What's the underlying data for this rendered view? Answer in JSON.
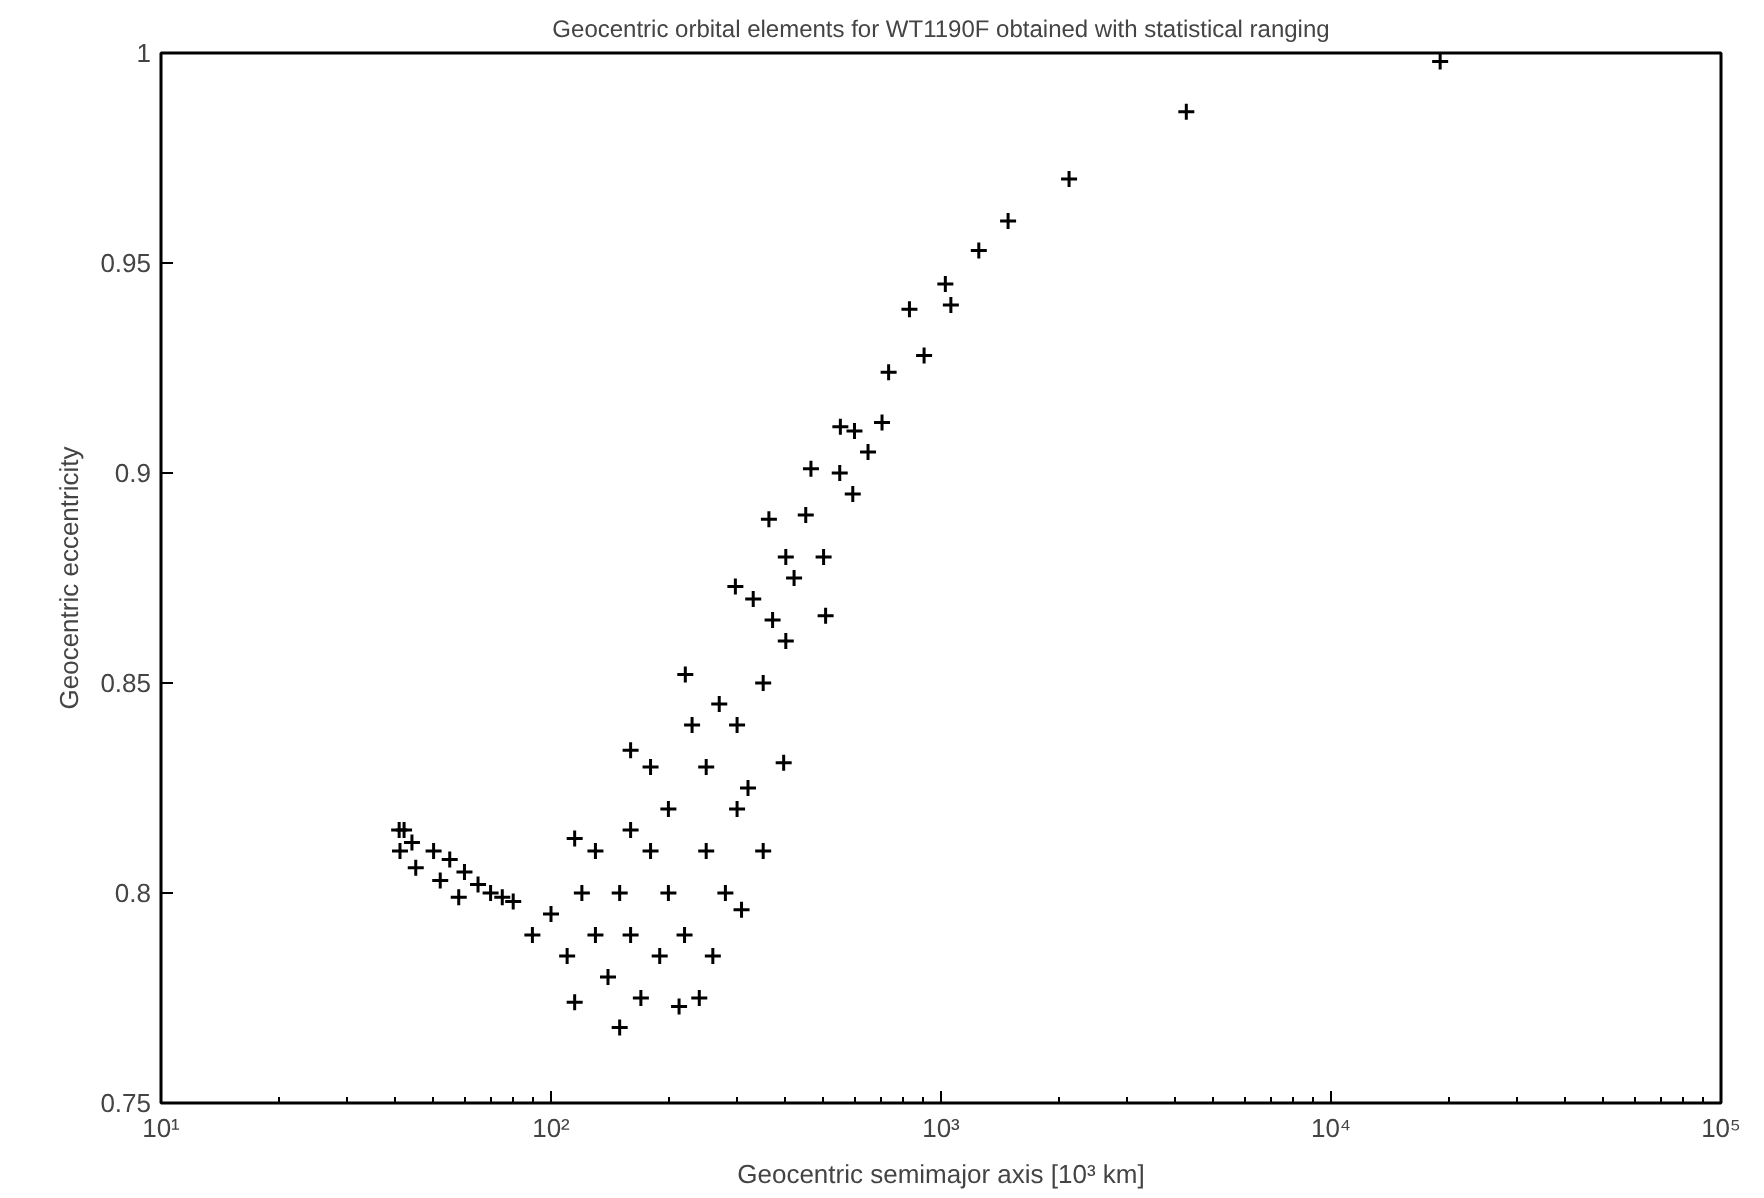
{
  "chart_data": {
    "type": "scatter",
    "title": "Geocentric orbital elements for WT1190F obtained with statistical ranging",
    "xlabel": "Geocentric semimajor axis [10³ km]",
    "ylabel": "Geocentric eccentricity",
    "log": "x",
    "marker": "cross",
    "grid": false,
    "xlim": [
      10,
      100000
    ],
    "xticks": [
      {
        "value": 10,
        "label": "10¹"
      },
      {
        "value": 100,
        "label": "10²"
      },
      {
        "value": 1000,
        "label": "10³"
      },
      {
        "value": 10000,
        "label": "10⁴"
      },
      {
        "value": 100000,
        "label": "10⁵"
      }
    ],
    "ylim": [
      0.75,
      1
    ],
    "yticks": [
      0.75,
      0.8,
      0.85,
      0.9,
      0.95,
      1
    ],
    "series": [
      {
        "color": "#000000",
        "x": [
          40.8,
          42,
          44,
          41,
          45,
          50,
          55,
          52,
          60,
          65,
          70,
          58,
          75,
          80,
          89.6,
          115,
          150,
          213,
          308,
          395,
          506,
          594,
          706,
          115,
          160,
          221,
          297,
          362,
          464,
          552,
          734,
          830,
          905,
          1026,
          1060,
          1250,
          1486,
          2130,
          4256,
          19050,
          100,
          110,
          120,
          130,
          140,
          150,
          160,
          170,
          180,
          200,
          220,
          250,
          280,
          300,
          250,
          200,
          180,
          300,
          350,
          400,
          330,
          400,
          450,
          500,
          550,
          600,
          650,
          130,
          160,
          190,
          240,
          260,
          350,
          320,
          270,
          230,
          370,
          420
        ],
        "values": [
          0.815,
          0.815,
          0.812,
          0.81,
          0.806,
          0.81,
          0.808,
          0.803,
          0.805,
          0.802,
          0.8,
          0.799,
          0.799,
          0.798,
          0.79,
          0.774,
          0.768,
          0.773,
          0.796,
          0.831,
          0.866,
          0.895,
          0.912,
          0.813,
          0.834,
          0.852,
          0.873,
          0.889,
          0.901,
          0.911,
          0.924,
          0.939,
          0.928,
          0.945,
          0.94,
          0.953,
          0.96,
          0.97,
          0.986,
          0.998,
          0.795,
          0.785,
          0.8,
          0.79,
          0.78,
          0.8,
          0.79,
          0.775,
          0.81,
          0.8,
          0.79,
          0.81,
          0.8,
          0.82,
          0.83,
          0.82,
          0.83,
          0.84,
          0.85,
          0.86,
          0.87,
          0.88,
          0.89,
          0.88,
          0.9,
          0.91,
          0.905,
          0.81,
          0.815,
          0.785,
          0.775,
          0.785,
          0.81,
          0.825,
          0.845,
          0.84,
          0.865,
          0.875
        ]
      }
    ]
  }
}
